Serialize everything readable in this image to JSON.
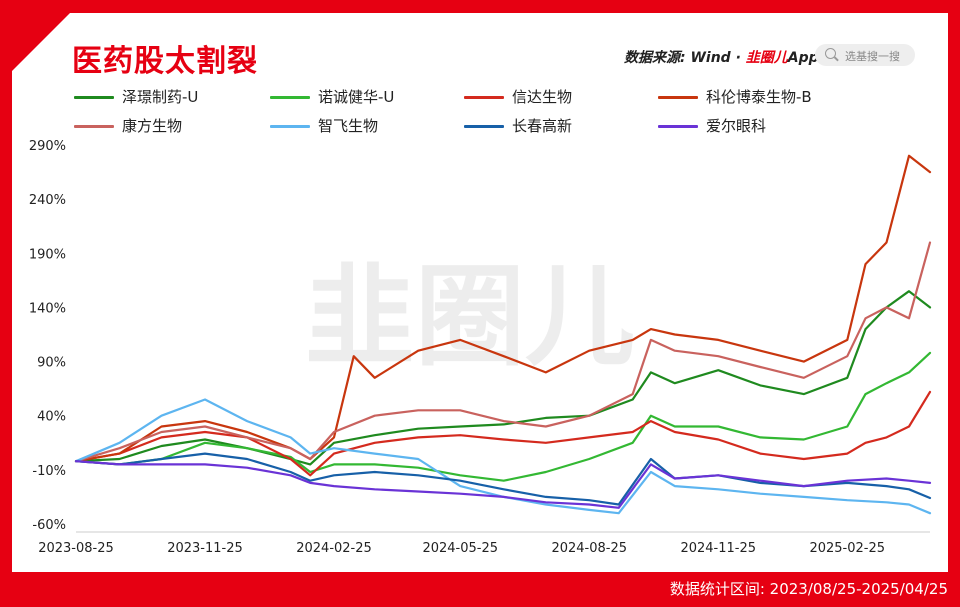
{
  "header": {
    "title": "医药股太割裂",
    "source_prefix": "数据来源: Wind · ",
    "source_logo": "韭圈儿",
    "source_suffix": "App",
    "search_placeholder": "选基搜一搜"
  },
  "footer": {
    "text": "数据统计区间: 2023/08/25-2025/04/25"
  },
  "watermark": "韭圈儿",
  "chart_data": {
    "type": "line",
    "title": "医药股太割裂",
    "xlabel": "",
    "ylabel": "",
    "ylim": [
      -60,
      290
    ],
    "y_ticks": [
      "290%",
      "240%",
      "190%",
      "140%",
      "90%",
      "40%",
      "-10%",
      "-60%"
    ],
    "y_tick_values": [
      290,
      240,
      190,
      140,
      90,
      40,
      -10,
      -60
    ],
    "x_ticks": [
      "2023-08-25",
      "2023-11-25",
      "2024-02-25",
      "2024-05-25",
      "2024-08-25",
      "2024-11-25",
      "2025-02-25"
    ],
    "x_tick_values": [
      "2023-08-25",
      "2023-11-25",
      "2024-02-25",
      "2024-05-25",
      "2024-08-25",
      "2024-11-25",
      "2025-02-25"
    ],
    "x_range": [
      "2023-08-25",
      "2025-04-25"
    ],
    "grid": false,
    "legend_position": "top",
    "series": [
      {
        "name": "泽璟制药-U",
        "color": "#1f8a1f",
        "points": [
          [
            "2023-08-25",
            -2
          ],
          [
            "2023-09-25",
            0
          ],
          [
            "2023-10-25",
            12
          ],
          [
            "2023-11-25",
            18
          ],
          [
            "2023-12-25",
            10
          ],
          [
            "2024-01-25",
            0
          ],
          [
            "2024-02-08",
            -5
          ],
          [
            "2024-02-25",
            15
          ],
          [
            "2024-03-25",
            22
          ],
          [
            "2024-04-25",
            28
          ],
          [
            "2024-05-25",
            30
          ],
          [
            "2024-06-25",
            32
          ],
          [
            "2024-07-25",
            38
          ],
          [
            "2024-08-25",
            40
          ],
          [
            "2024-09-25",
            55
          ],
          [
            "2024-10-08",
            80
          ],
          [
            "2024-10-25",
            70
          ],
          [
            "2024-11-25",
            82
          ],
          [
            "2024-12-25",
            68
          ],
          [
            "2025-01-25",
            60
          ],
          [
            "2025-02-25",
            75
          ],
          [
            "2025-03-10",
            120
          ],
          [
            "2025-03-25",
            140
          ],
          [
            "2025-04-10",
            155
          ],
          [
            "2025-04-25",
            140
          ]
        ]
      },
      {
        "name": "诺诚健华-U",
        "color": "#33b833",
        "points": [
          [
            "2023-08-25",
            -2
          ],
          [
            "2023-09-25",
            -5
          ],
          [
            "2023-10-25",
            0
          ],
          [
            "2023-11-25",
            15
          ],
          [
            "2023-12-25",
            10
          ],
          [
            "2024-01-25",
            2
          ],
          [
            "2024-02-08",
            -12
          ],
          [
            "2024-02-25",
            -5
          ],
          [
            "2024-03-25",
            -5
          ],
          [
            "2024-04-25",
            -8
          ],
          [
            "2024-05-25",
            -15
          ],
          [
            "2024-06-25",
            -20
          ],
          [
            "2024-07-25",
            -12
          ],
          [
            "2024-08-25",
            0
          ],
          [
            "2024-09-25",
            15
          ],
          [
            "2024-10-08",
            40
          ],
          [
            "2024-10-25",
            30
          ],
          [
            "2024-11-25",
            30
          ],
          [
            "2024-12-25",
            20
          ],
          [
            "2025-01-25",
            18
          ],
          [
            "2025-02-25",
            30
          ],
          [
            "2025-03-10",
            60
          ],
          [
            "2025-03-25",
            70
          ],
          [
            "2025-04-10",
            80
          ],
          [
            "2025-04-25",
            98
          ]
        ]
      },
      {
        "name": "信达生物",
        "color": "#d42a1e",
        "points": [
          [
            "2023-08-25",
            -2
          ],
          [
            "2023-09-25",
            5
          ],
          [
            "2023-10-25",
            20
          ],
          [
            "2023-11-25",
            25
          ],
          [
            "2023-12-25",
            20
          ],
          [
            "2024-01-25",
            0
          ],
          [
            "2024-02-08",
            -15
          ],
          [
            "2024-02-25",
            5
          ],
          [
            "2024-03-25",
            15
          ],
          [
            "2024-04-25",
            20
          ],
          [
            "2024-05-25",
            22
          ],
          [
            "2024-06-25",
            18
          ],
          [
            "2024-07-25",
            15
          ],
          [
            "2024-08-25",
            20
          ],
          [
            "2024-09-25",
            25
          ],
          [
            "2024-10-08",
            35
          ],
          [
            "2024-10-25",
            25
          ],
          [
            "2024-11-25",
            18
          ],
          [
            "2024-12-25",
            5
          ],
          [
            "2025-01-25",
            0
          ],
          [
            "2025-02-25",
            5
          ],
          [
            "2025-03-10",
            15
          ],
          [
            "2025-03-25",
            20
          ],
          [
            "2025-04-10",
            30
          ],
          [
            "2025-04-25",
            62
          ]
        ]
      },
      {
        "name": "科伦博泰生物-B",
        "color": "#c8360e",
        "points": [
          [
            "2023-08-25",
            -2
          ],
          [
            "2023-09-25",
            5
          ],
          [
            "2023-10-25",
            30
          ],
          [
            "2023-11-25",
            35
          ],
          [
            "2023-12-25",
            25
          ],
          [
            "2024-01-25",
            10
          ],
          [
            "2024-02-08",
            0
          ],
          [
            "2024-02-25",
            20
          ],
          [
            "2024-03-10",
            95
          ],
          [
            "2024-03-25",
            75
          ],
          [
            "2024-04-25",
            100
          ],
          [
            "2024-05-25",
            110
          ],
          [
            "2024-06-25",
            95
          ],
          [
            "2024-07-25",
            80
          ],
          [
            "2024-08-25",
            100
          ],
          [
            "2024-09-25",
            110
          ],
          [
            "2024-10-08",
            120
          ],
          [
            "2024-10-25",
            115
          ],
          [
            "2024-11-25",
            110
          ],
          [
            "2024-12-25",
            100
          ],
          [
            "2025-01-25",
            90
          ],
          [
            "2025-02-25",
            110
          ],
          [
            "2025-03-10",
            180
          ],
          [
            "2025-03-25",
            200
          ],
          [
            "2025-04-10",
            280
          ],
          [
            "2025-04-25",
            265
          ]
        ]
      },
      {
        "name": "康方生物",
        "color": "#c9625e",
        "points": [
          [
            "2023-08-25",
            -2
          ],
          [
            "2023-09-25",
            10
          ],
          [
            "2023-10-25",
            25
          ],
          [
            "2023-11-25",
            30
          ],
          [
            "2023-12-25",
            20
          ],
          [
            "2024-01-25",
            10
          ],
          [
            "2024-02-08",
            0
          ],
          [
            "2024-02-25",
            25
          ],
          [
            "2024-03-25",
            40
          ],
          [
            "2024-04-25",
            45
          ],
          [
            "2024-05-25",
            45
          ],
          [
            "2024-06-25",
            35
          ],
          [
            "2024-07-25",
            30
          ],
          [
            "2024-08-25",
            40
          ],
          [
            "2024-09-25",
            60
          ],
          [
            "2024-10-08",
            110
          ],
          [
            "2024-10-25",
            100
          ],
          [
            "2024-11-25",
            95
          ],
          [
            "2024-12-25",
            85
          ],
          [
            "2025-01-25",
            75
          ],
          [
            "2025-02-25",
            95
          ],
          [
            "2025-03-10",
            130
          ],
          [
            "2025-03-25",
            140
          ],
          [
            "2025-04-10",
            130
          ],
          [
            "2025-04-25",
            200
          ]
        ]
      },
      {
        "name": "智飞生物",
        "color": "#5db5f0",
        "points": [
          [
            "2023-08-25",
            -2
          ],
          [
            "2023-09-25",
            15
          ],
          [
            "2023-10-25",
            40
          ],
          [
            "2023-11-25",
            55
          ],
          [
            "2023-12-25",
            35
          ],
          [
            "2024-01-25",
            20
          ],
          [
            "2024-02-08",
            5
          ],
          [
            "2024-02-25",
            10
          ],
          [
            "2024-03-25",
            5
          ],
          [
            "2024-04-25",
            0
          ],
          [
            "2024-05-25",
            -25
          ],
          [
            "2024-06-25",
            -35
          ],
          [
            "2024-07-25",
            -42
          ],
          [
            "2024-08-25",
            -47
          ],
          [
            "2024-09-15",
            -50
          ],
          [
            "2024-10-08",
            -12
          ],
          [
            "2024-10-25",
            -25
          ],
          [
            "2024-11-25",
            -28
          ],
          [
            "2024-12-25",
            -32
          ],
          [
            "2025-01-25",
            -35
          ],
          [
            "2025-02-25",
            -38
          ],
          [
            "2025-03-25",
            -40
          ],
          [
            "2025-04-10",
            -42
          ],
          [
            "2025-04-25",
            -50
          ]
        ]
      },
      {
        "name": "长春高新",
        "color": "#1760a8",
        "points": [
          [
            "2023-08-25",
            -2
          ],
          [
            "2023-09-25",
            -5
          ],
          [
            "2023-10-25",
            0
          ],
          [
            "2023-11-25",
            5
          ],
          [
            "2023-12-25",
            0
          ],
          [
            "2024-01-25",
            -12
          ],
          [
            "2024-02-08",
            -20
          ],
          [
            "2024-02-25",
            -15
          ],
          [
            "2024-03-25",
            -12
          ],
          [
            "2024-04-25",
            -15
          ],
          [
            "2024-05-25",
            -20
          ],
          [
            "2024-06-25",
            -28
          ],
          [
            "2024-07-25",
            -35
          ],
          [
            "2024-08-25",
            -38
          ],
          [
            "2024-09-15",
            -42
          ],
          [
            "2024-10-08",
            0
          ],
          [
            "2024-10-25",
            -18
          ],
          [
            "2024-11-25",
            -15
          ],
          [
            "2024-12-25",
            -22
          ],
          [
            "2025-01-25",
            -25
          ],
          [
            "2025-02-25",
            -22
          ],
          [
            "2025-03-25",
            -25
          ],
          [
            "2025-04-10",
            -28
          ],
          [
            "2025-04-25",
            -36
          ]
        ]
      },
      {
        "name": "爱尔眼科",
        "color": "#6a33d6",
        "points": [
          [
            "2023-08-25",
            -2
          ],
          [
            "2023-09-25",
            -5
          ],
          [
            "2023-10-25",
            -5
          ],
          [
            "2023-11-25",
            -5
          ],
          [
            "2023-12-25",
            -8
          ],
          [
            "2024-01-25",
            -15
          ],
          [
            "2024-02-08",
            -22
          ],
          [
            "2024-02-25",
            -25
          ],
          [
            "2024-03-25",
            -28
          ],
          [
            "2024-04-25",
            -30
          ],
          [
            "2024-05-25",
            -32
          ],
          [
            "2024-06-25",
            -35
          ],
          [
            "2024-07-25",
            -40
          ],
          [
            "2024-08-25",
            -42
          ],
          [
            "2024-09-15",
            -45
          ],
          [
            "2024-10-08",
            -5
          ],
          [
            "2024-10-25",
            -18
          ],
          [
            "2024-11-25",
            -15
          ],
          [
            "2024-12-25",
            -20
          ],
          [
            "2025-01-25",
            -25
          ],
          [
            "2025-02-25",
            -20
          ],
          [
            "2025-03-25",
            -18
          ],
          [
            "2025-04-10",
            -20
          ],
          [
            "2025-04-25",
            -22
          ]
        ]
      }
    ]
  }
}
